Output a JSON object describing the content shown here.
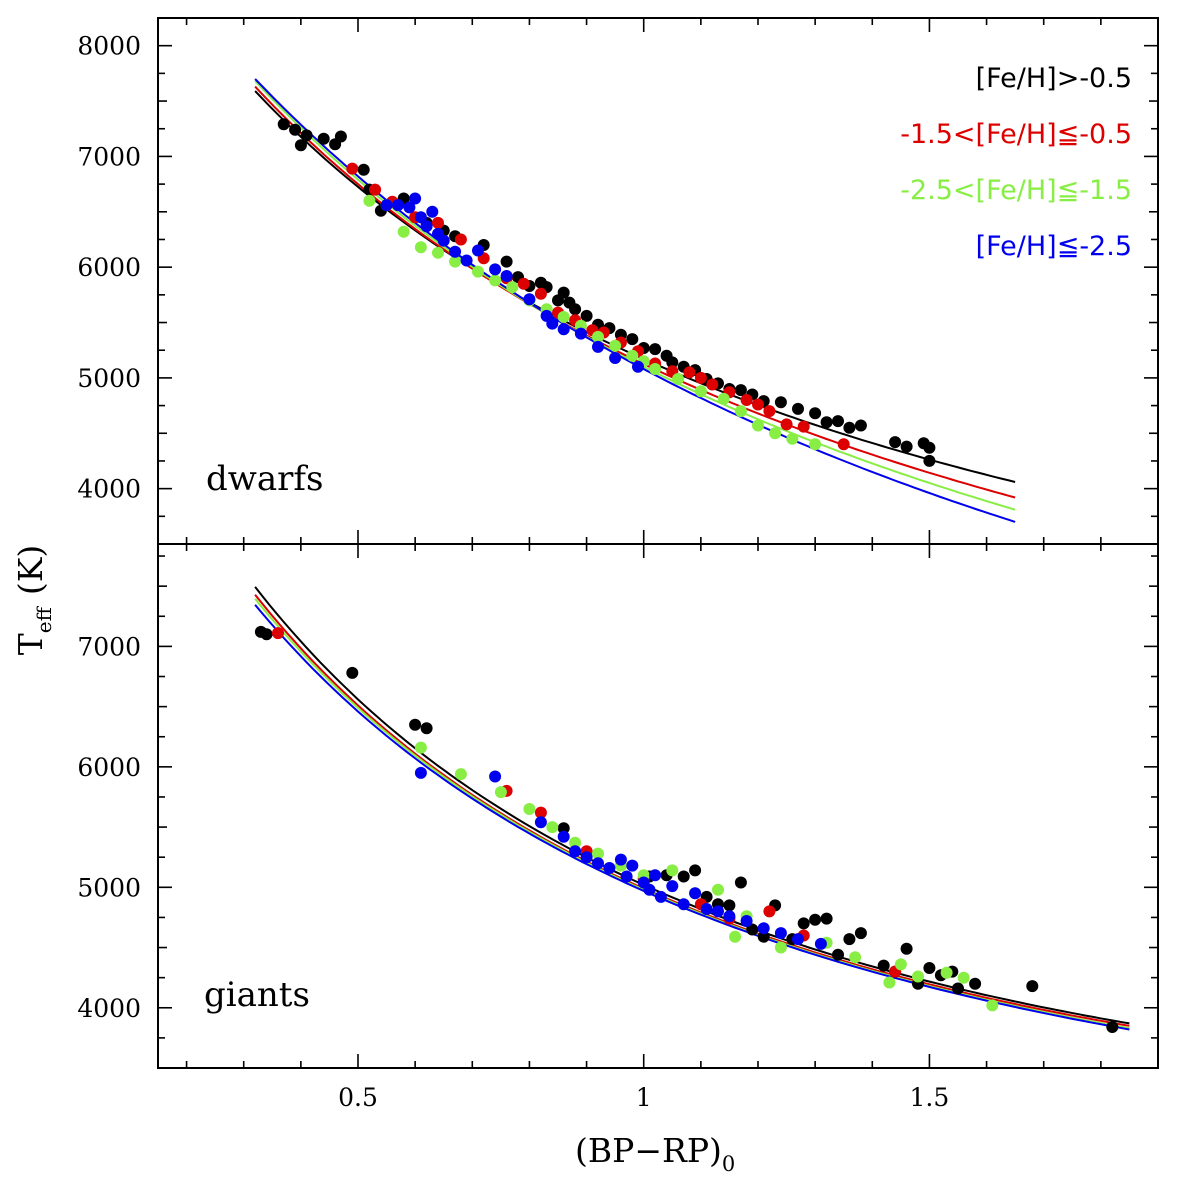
{
  "chart_data": [
    {
      "type": "scatter",
      "panel": "dwarfs",
      "panel_label": "dwarfs",
      "xlim": [
        0.15,
        1.9
      ],
      "ylim": [
        3500,
        8250
      ],
      "yticks": [
        4000,
        5000,
        6000,
        7000,
        8000
      ],
      "ytick_labels": [
        "4000",
        "5000",
        "6000",
        "7000",
        "8000"
      ],
      "legend_position": "top-right",
      "series": [
        {
          "name": "[Fe/H]>-0.5",
          "color": "#000000",
          "curve": {
            "x_min": 0.32,
            "x_max": 1.65,
            "T_at_0.5": 6725,
            "T_at_1.0": 5170,
            "T_at_1.65": 4060
          },
          "points": [
            [
              0.37,
              7290
            ],
            [
              0.39,
              7240
            ],
            [
              0.41,
              7190
            ],
            [
              0.4,
              7100
            ],
            [
              0.44,
              7160
            ],
            [
              0.46,
              7110
            ],
            [
              0.47,
              7180
            ],
            [
              0.51,
              6880
            ],
            [
              0.52,
              6700
            ],
            [
              0.54,
              6510
            ],
            [
              0.58,
              6620
            ],
            [
              0.62,
              6400
            ],
            [
              0.65,
              6330
            ],
            [
              0.67,
              6280
            ],
            [
              0.72,
              6200
            ],
            [
              0.76,
              6050
            ],
            [
              0.78,
              5910
            ],
            [
              0.8,
              5830
            ],
            [
              0.82,
              5860
            ],
            [
              0.83,
              5820
            ],
            [
              0.85,
              5700
            ],
            [
              0.86,
              5770
            ],
            [
              0.87,
              5680
            ],
            [
              0.88,
              5620
            ],
            [
              0.9,
              5560
            ],
            [
              0.92,
              5480
            ],
            [
              0.94,
              5450
            ],
            [
              0.96,
              5390
            ],
            [
              0.98,
              5350
            ],
            [
              1.0,
              5270
            ],
            [
              1.02,
              5260
            ],
            [
              1.04,
              5200
            ],
            [
              1.05,
              5140
            ],
            [
              1.07,
              5100
            ],
            [
              1.09,
              5070
            ],
            [
              1.11,
              4990
            ],
            [
              1.13,
              4950
            ],
            [
              1.15,
              4900
            ],
            [
              1.17,
              4890
            ],
            [
              1.19,
              4850
            ],
            [
              1.21,
              4790
            ],
            [
              1.24,
              4780
            ],
            [
              1.27,
              4720
            ],
            [
              1.3,
              4680
            ],
            [
              1.32,
              4600
            ],
            [
              1.34,
              4610
            ],
            [
              1.36,
              4550
            ],
            [
              1.38,
              4570
            ],
            [
              1.44,
              4420
            ],
            [
              1.46,
              4380
            ],
            [
              1.5,
              4370
            ],
            [
              1.5,
              4250
            ],
            [
              1.49,
              4410
            ]
          ]
        },
        {
          "name": "-1.5<[Fe/H]≦-0.5",
          "color": "#dd0000",
          "curve": {
            "x_min": 0.32,
            "x_max": 1.65,
            "T_at_0.5": 6750,
            "T_at_1.0": 5125,
            "T_at_1.65": 3920
          },
          "points": [
            [
              0.49,
              6890
            ],
            [
              0.53,
              6700
            ],
            [
              0.56,
              6590
            ],
            [
              0.6,
              6450
            ],
            [
              0.64,
              6400
            ],
            [
              0.68,
              6250
            ],
            [
              0.72,
              6080
            ],
            [
              0.76,
              5900
            ],
            [
              0.79,
              5850
            ],
            [
              0.82,
              5760
            ],
            [
              0.85,
              5590
            ],
            [
              0.88,
              5520
            ],
            [
              0.91,
              5430
            ],
            [
              0.93,
              5410
            ],
            [
              0.96,
              5320
            ],
            [
              0.99,
              5240
            ],
            [
              1.02,
              5130
            ],
            [
              1.05,
              5060
            ],
            [
              1.08,
              5050
            ],
            [
              1.1,
              5000
            ],
            [
              1.12,
              4940
            ],
            [
              1.15,
              4870
            ],
            [
              1.18,
              4800
            ],
            [
              1.2,
              4760
            ],
            [
              1.22,
              4700
            ],
            [
              1.25,
              4580
            ],
            [
              1.28,
              4560
            ],
            [
              1.35,
              4400
            ]
          ]
        },
        {
          "name": "-2.5<[Fe/H]≦-1.5",
          "color": "#88ee44",
          "curve": {
            "x_min": 0.32,
            "x_max": 1.65,
            "T_at_0.5": 6790,
            "T_at_1.0": 5100,
            "T_at_1.65": 3810
          },
          "points": [
            [
              0.52,
              6600
            ],
            [
              0.55,
              6560
            ],
            [
              0.58,
              6320
            ],
            [
              0.61,
              6180
            ],
            [
              0.64,
              6130
            ],
            [
              0.67,
              6050
            ],
            [
              0.71,
              5960
            ],
            [
              0.74,
              5880
            ],
            [
              0.77,
              5820
            ],
            [
              0.8,
              5700
            ],
            [
              0.83,
              5620
            ],
            [
              0.86,
              5550
            ],
            [
              0.89,
              5470
            ],
            [
              0.92,
              5370
            ],
            [
              0.95,
              5290
            ],
            [
              0.98,
              5200
            ],
            [
              1.0,
              5150
            ],
            [
              1.02,
              5080
            ],
            [
              1.06,
              4990
            ],
            [
              1.1,
              4880
            ],
            [
              1.14,
              4810
            ],
            [
              1.17,
              4700
            ],
            [
              1.2,
              4570
            ],
            [
              1.23,
              4500
            ],
            [
              1.26,
              4450
            ],
            [
              1.3,
              4400
            ]
          ]
        },
        {
          "name": "[Fe/H]≦-2.5",
          "color": "#0000ee",
          "curve": {
            "x_min": 0.32,
            "x_max": 1.65,
            "T_at_0.5": 6820,
            "T_at_1.0": 5080,
            "T_at_1.65": 3700
          },
          "points": [
            [
              0.55,
              6560
            ],
            [
              0.57,
              6560
            ],
            [
              0.59,
              6540
            ],
            [
              0.6,
              6620
            ],
            [
              0.61,
              6450
            ],
            [
              0.62,
              6370
            ],
            [
              0.63,
              6500
            ],
            [
              0.64,
              6300
            ],
            [
              0.65,
              6240
            ],
            [
              0.67,
              6140
            ],
            [
              0.69,
              6060
            ],
            [
              0.71,
              6150
            ],
            [
              0.74,
              5980
            ],
            [
              0.76,
              5920
            ],
            [
              0.8,
              5710
            ],
            [
              0.83,
              5560
            ],
            [
              0.84,
              5490
            ],
            [
              0.86,
              5440
            ],
            [
              0.89,
              5400
            ],
            [
              0.92,
              5280
            ],
            [
              0.95,
              5180
            ],
            [
              0.99,
              5100
            ]
          ]
        }
      ]
    },
    {
      "type": "scatter",
      "panel": "giants",
      "panel_label": "giants",
      "xlim": [
        0.15,
        1.9
      ],
      "ylim": [
        3500,
        7850
      ],
      "yticks": [
        4000,
        5000,
        6000,
        7000
      ],
      "ytick_labels": [
        "4000",
        "5000",
        "6000",
        "7000"
      ],
      "xticks": [
        0.5,
        1.0,
        1.5
      ],
      "xtick_labels": [
        "0.5",
        "1",
        "1.5"
      ],
      "xlabel": "(BP−RP)",
      "xlabel_subscript": "0",
      "ylabel": "T",
      "ylabel_subscript": "eff",
      "ylabel_unit": "(K)",
      "series": [
        {
          "name": "[Fe/H]>-0.5",
          "color": "#000000",
          "curve": {
            "x_min": 0.32,
            "x_max": 1.85,
            "T_at_0.5": 6560,
            "T_at_1.0": 5020,
            "T_at_1.85": 3870
          },
          "points": [
            [
              0.33,
              7120
            ],
            [
              0.34,
              7100
            ],
            [
              0.49,
              6780
            ],
            [
              0.6,
              6350
            ],
            [
              0.62,
              6320
            ],
            [
              0.86,
              5490
            ],
            [
              1.01,
              5090
            ],
            [
              1.04,
              5100
            ],
            [
              1.07,
              5090
            ],
            [
              1.09,
              5140
            ],
            [
              1.11,
              4920
            ],
            [
              1.13,
              4860
            ],
            [
              1.15,
              4850
            ],
            [
              1.17,
              5040
            ],
            [
              1.19,
              4650
            ],
            [
              1.21,
              4590
            ],
            [
              1.23,
              4850
            ],
            [
              1.26,
              4570
            ],
            [
              1.28,
              4700
            ],
            [
              1.3,
              4730
            ],
            [
              1.32,
              4740
            ],
            [
              1.34,
              4440
            ],
            [
              1.36,
              4570
            ],
            [
              1.38,
              4620
            ],
            [
              1.42,
              4350
            ],
            [
              1.44,
              4300
            ],
            [
              1.46,
              4490
            ],
            [
              1.48,
              4200
            ],
            [
              1.5,
              4330
            ],
            [
              1.52,
              4270
            ],
            [
              1.54,
              4300
            ],
            [
              1.55,
              4160
            ],
            [
              1.58,
              4200
            ],
            [
              1.68,
              4180
            ],
            [
              1.82,
              3840
            ]
          ]
        },
        {
          "name": "-1.5<[Fe/H]≦-0.5",
          "color": "#dd0000",
          "curve": {
            "x_min": 0.32,
            "x_max": 1.85,
            "T_at_0.5": 6510,
            "T_at_1.0": 4990,
            "T_at_1.85": 3850
          },
          "points": [
            [
              0.36,
              7110
            ],
            [
              0.76,
              5800
            ],
            [
              0.82,
              5620
            ],
            [
              0.9,
              5300
            ],
            [
              1.0,
              5070
            ],
            [
              1.1,
              4860
            ],
            [
              1.15,
              4740
            ],
            [
              1.22,
              4800
            ],
            [
              1.28,
              4600
            ],
            [
              1.44,
              4300
            ]
          ]
        },
        {
          "name": "-2.5<[Fe/H]≦-1.5",
          "color": "#88ee44",
          "curve": {
            "x_min": 0.32,
            "x_max": 1.85,
            "T_at_0.5": 6490,
            "T_at_1.0": 4980,
            "T_at_1.85": 3830
          },
          "points": [
            [
              0.61,
              6160
            ],
            [
              0.68,
              5940
            ],
            [
              0.75,
              5790
            ],
            [
              0.8,
              5650
            ],
            [
              0.84,
              5500
            ],
            [
              0.88,
              5370
            ],
            [
              0.92,
              5280
            ],
            [
              0.96,
              5180
            ],
            [
              1.0,
              5100
            ],
            [
              1.05,
              5140
            ],
            [
              1.09,
              4950
            ],
            [
              1.13,
              4980
            ],
            [
              1.16,
              4590
            ],
            [
              1.18,
              4760
            ],
            [
              1.24,
              4500
            ],
            [
              1.32,
              4540
            ],
            [
              1.37,
              4420
            ],
            [
              1.43,
              4210
            ],
            [
              1.45,
              4360
            ],
            [
              1.48,
              4260
            ],
            [
              1.53,
              4290
            ],
            [
              1.56,
              4250
            ],
            [
              1.61,
              4020
            ]
          ]
        },
        {
          "name": "[Fe/H]≦-2.5",
          "color": "#0000ee",
          "curve": {
            "x_min": 0.32,
            "x_max": 1.85,
            "T_at_0.5": 6460,
            "T_at_1.0": 4970,
            "T_at_1.85": 3820
          },
          "points": [
            [
              0.61,
              5950
            ],
            [
              0.74,
              5920
            ],
            [
              0.82,
              5540
            ],
            [
              0.86,
              5420
            ],
            [
              0.88,
              5300
            ],
            [
              0.9,
              5250
            ],
            [
              0.92,
              5200
            ],
            [
              0.94,
              5160
            ],
            [
              0.96,
              5230
            ],
            [
              0.97,
              5090
            ],
            [
              0.98,
              5180
            ],
            [
              1.0,
              5040
            ],
            [
              1.01,
              4980
            ],
            [
              1.02,
              5100
            ],
            [
              1.03,
              4920
            ],
            [
              1.05,
              5010
            ],
            [
              1.07,
              4860
            ],
            [
              1.09,
              4950
            ],
            [
              1.11,
              4820
            ],
            [
              1.13,
              4800
            ],
            [
              1.15,
              4760
            ],
            [
              1.18,
              4720
            ],
            [
              1.21,
              4660
            ],
            [
              1.24,
              4620
            ],
            [
              1.27,
              4570
            ],
            [
              1.31,
              4530
            ]
          ]
        }
      ]
    }
  ]
}
